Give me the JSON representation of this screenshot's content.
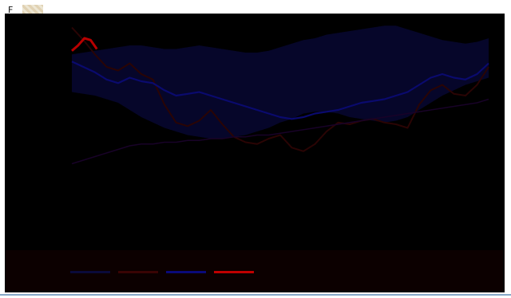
{
  "header": {
    "corner_glyph": "F"
  },
  "chart_data": {
    "type": "line",
    "title": "",
    "xlabel": "",
    "ylabel": "",
    "y_tick_labels": [],
    "grid": false,
    "legend_position": "bottom",
    "band": {
      "color": "#06062a",
      "lower": [
        0.62,
        0.61,
        0.6,
        0.58,
        0.56,
        0.52,
        0.48,
        0.45,
        0.42,
        0.4,
        0.38,
        0.37,
        0.36,
        0.36,
        0.37,
        0.38,
        0.4,
        0.42,
        0.45,
        0.47,
        0.5,
        0.51,
        0.51,
        0.5,
        0.48,
        0.47,
        0.46,
        0.45,
        0.46,
        0.48,
        0.52,
        0.56,
        0.6,
        0.63,
        0.66,
        0.68,
        0.7
      ],
      "upper": [
        0.83,
        0.84,
        0.85,
        0.86,
        0.87,
        0.88,
        0.88,
        0.87,
        0.86,
        0.86,
        0.87,
        0.88,
        0.87,
        0.86,
        0.85,
        0.84,
        0.84,
        0.85,
        0.87,
        0.89,
        0.91,
        0.92,
        0.94,
        0.95,
        0.96,
        0.97,
        0.98,
        0.99,
        0.99,
        0.97,
        0.95,
        0.93,
        0.91,
        0.9,
        0.89,
        0.9,
        0.92
      ]
    },
    "series": [
      {
        "color": "#2a0404",
        "line_width": 2,
        "values": [
          0.98,
          0.91,
          0.83,
          0.76,
          0.74,
          0.78,
          0.72,
          0.69,
          0.55,
          0.45,
          0.43,
          0.46,
          0.52,
          0.44,
          0.37,
          0.34,
          0.33,
          0.36,
          0.38,
          0.31,
          0.29,
          0.33,
          0.4,
          0.45,
          0.44,
          0.46,
          0.47,
          0.45,
          0.44,
          0.42,
          0.55,
          0.63,
          0.66,
          0.61,
          0.6,
          0.66,
          0.76
        ]
      },
      {
        "color": "#180228",
        "line_width": 1.5,
        "values": [
          0.22,
          0.24,
          0.26,
          0.28,
          0.3,
          0.32,
          0.33,
          0.33,
          0.34,
          0.34,
          0.35,
          0.35,
          0.36,
          0.36,
          0.37,
          0.37,
          0.38,
          0.38,
          0.39,
          0.4,
          0.41,
          0.42,
          0.43,
          0.44,
          0.45,
          0.46,
          0.47,
          0.48,
          0.49,
          0.5,
          0.51,
          0.52,
          0.53,
          0.54,
          0.55,
          0.56,
          0.58
        ]
      },
      {
        "color": "#0a0a6e",
        "line_width": 2.2,
        "values": [
          0.79,
          0.76,
          0.73,
          0.69,
          0.67,
          0.7,
          0.68,
          0.67,
          0.63,
          0.6,
          0.61,
          0.62,
          0.6,
          0.58,
          0.56,
          0.54,
          0.52,
          0.5,
          0.48,
          0.47,
          0.48,
          0.5,
          0.51,
          0.52,
          0.54,
          0.56,
          0.57,
          0.58,
          0.6,
          0.62,
          0.66,
          0.7,
          0.72,
          0.7,
          0.69,
          0.72,
          0.78
        ]
      },
      {
        "color": "#b80000",
        "line_width": 3,
        "values": [
          0.85,
          0.88,
          0.92,
          0.91,
          0.86
        ]
      }
    ],
    "legend": [
      {
        "label": "",
        "color": "#0a0a3a"
      },
      {
        "label": "",
        "color": "#3a0404"
      },
      {
        "label": "",
        "color": "#0a0a7a"
      },
      {
        "label": "",
        "color": "#c00000"
      }
    ]
  }
}
